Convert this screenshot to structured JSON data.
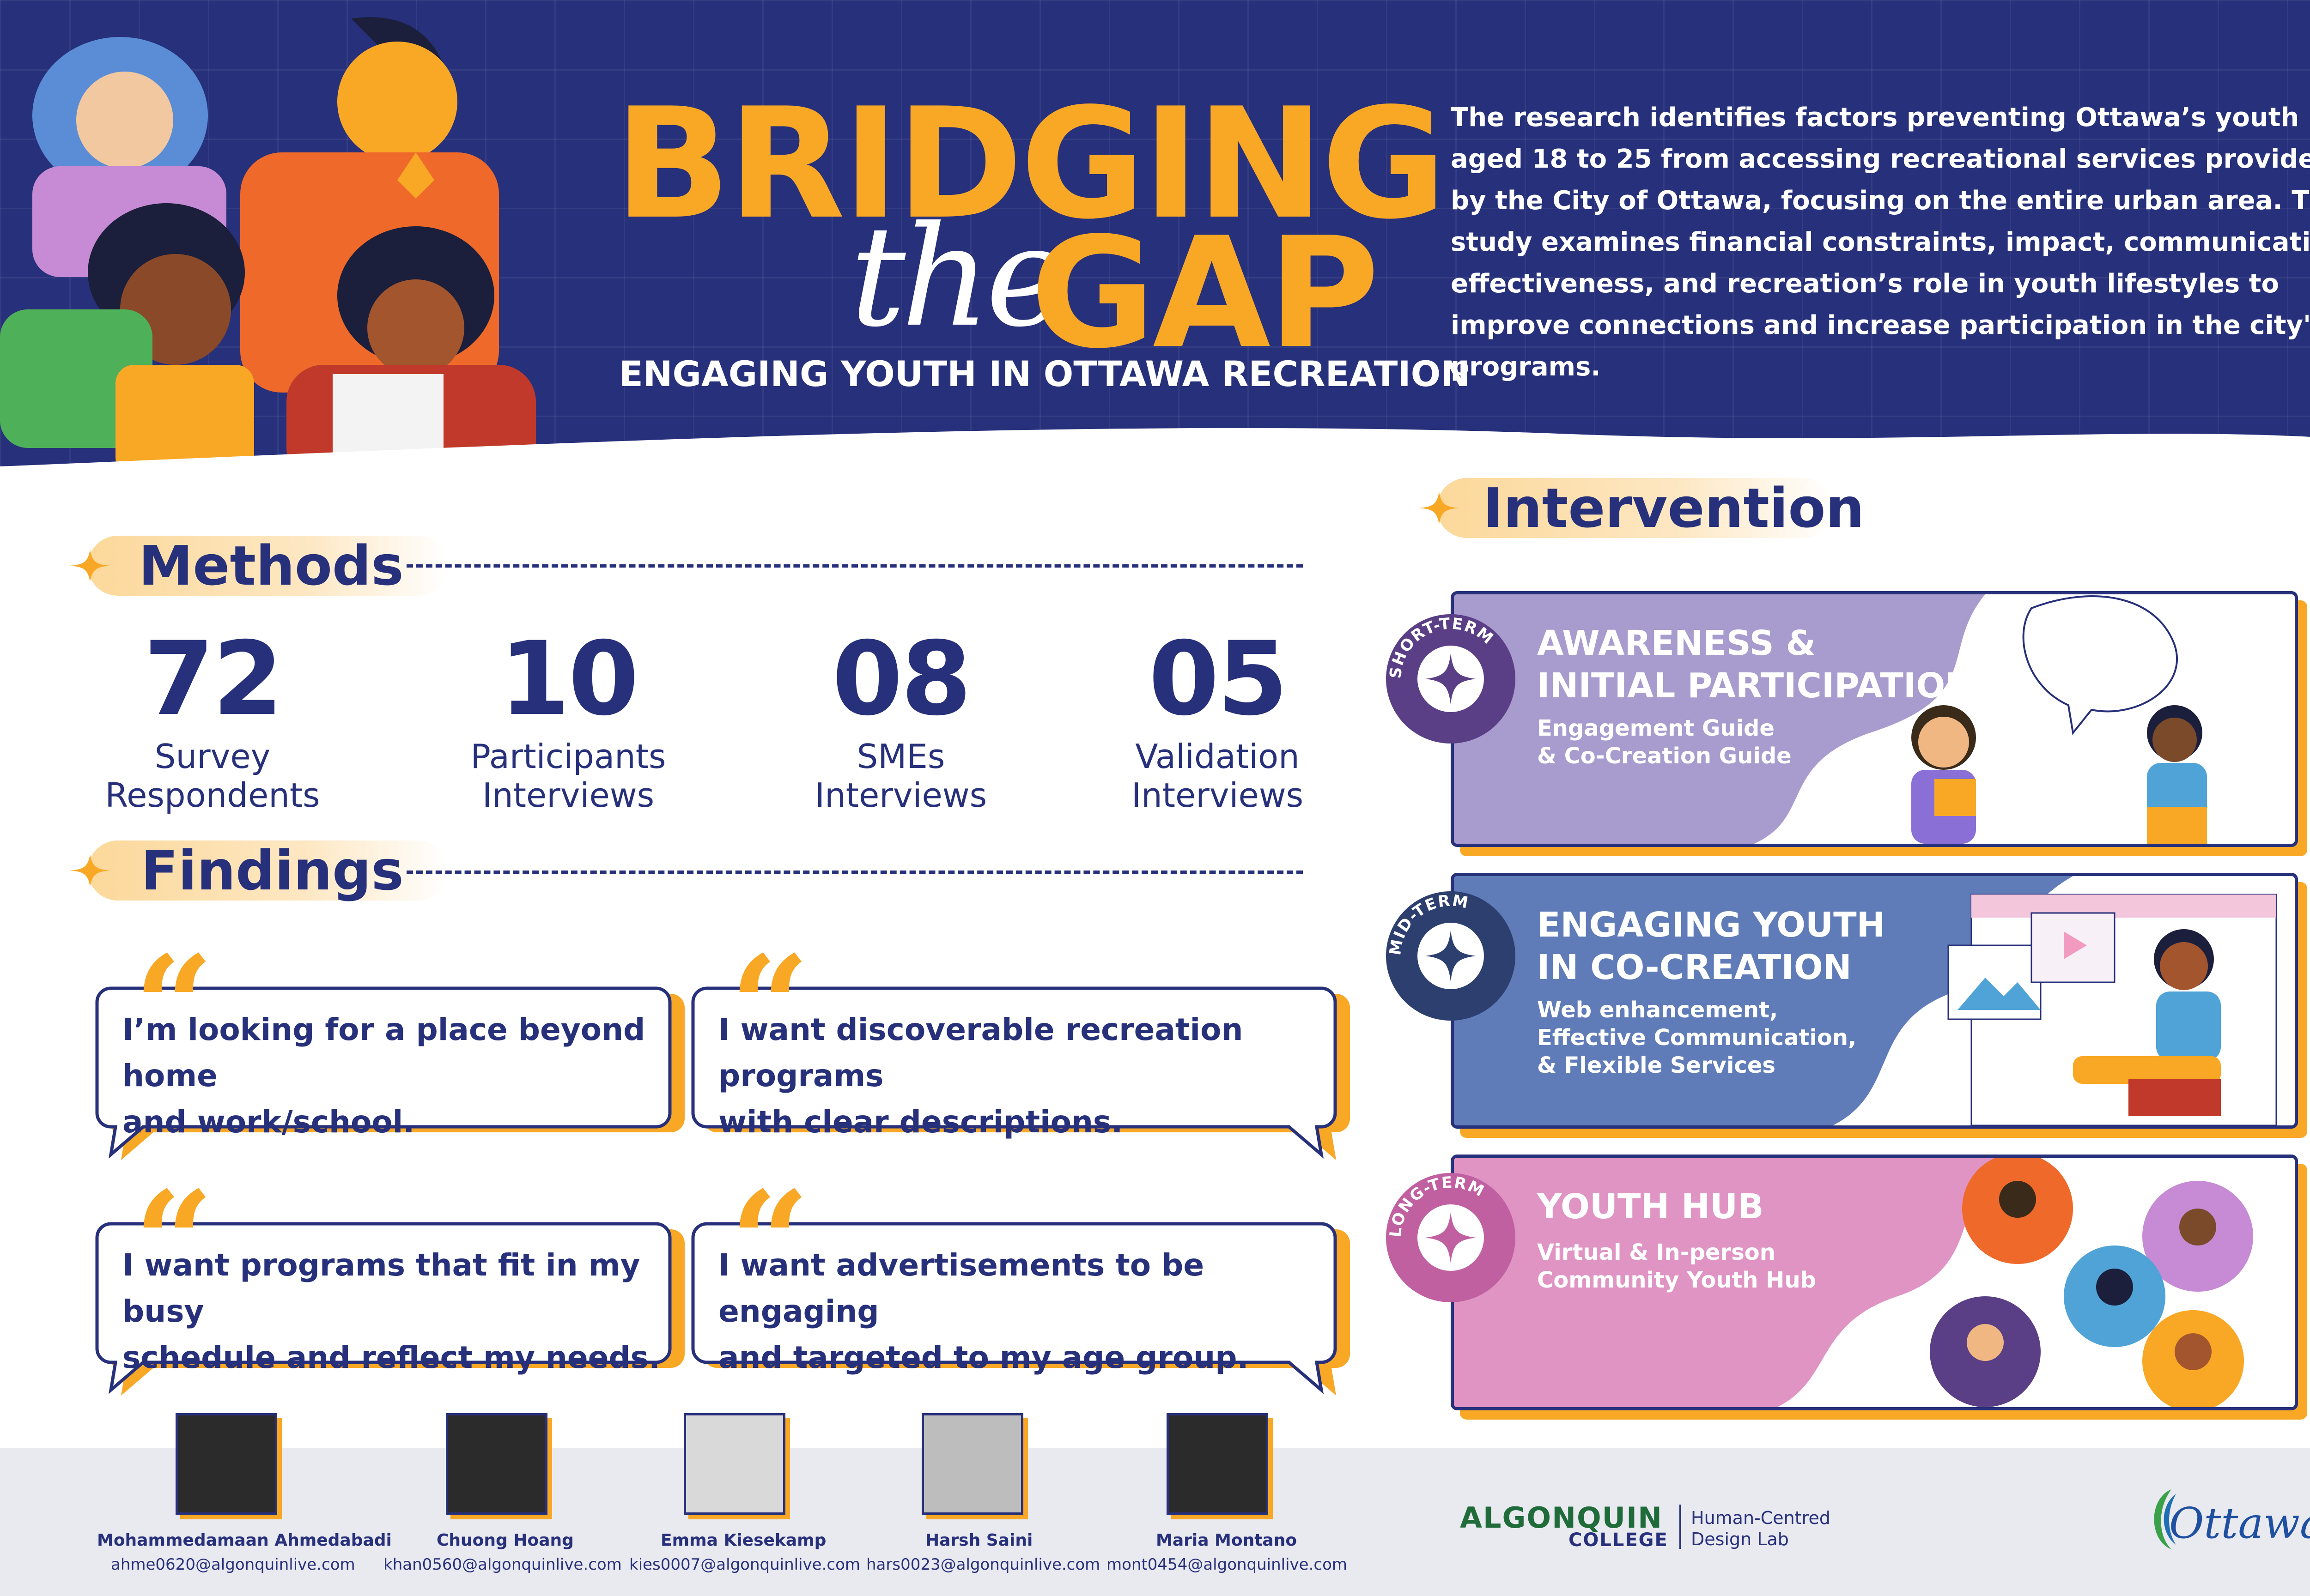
{
  "header": {
    "title_line1": "BRIDGING",
    "title_the": "the",
    "title_line2": "GAP",
    "subtitle": "ENGAGING YOUTH IN OTTAWA RECREATION",
    "intro": "The research identifies factors preventing Ottawa’s youth aged 18 to 25 from accessing recreational services provided by the City of Ottawa, focusing on the entire urban area. The study examines financial constraints, impact, communication effectiveness, and recreation’s role in youth lifestyles to improve connections and increase participation in the city's programs."
  },
  "methods": {
    "heading": "Methods",
    "stats": [
      {
        "value": "72",
        "label_line1": "Survey",
        "label_line2": "Respondents"
      },
      {
        "value": "10",
        "label_line1": "Participants",
        "label_line2": "Interviews"
      },
      {
        "value": "08",
        "label_line1": "SMEs",
        "label_line2": "Interviews"
      },
      {
        "value": "05",
        "label_line1": "Validation",
        "label_line2": "Interviews"
      }
    ]
  },
  "findings": {
    "heading": "Findings",
    "quotes": [
      {
        "line1": "I’m looking for a place beyond home",
        "line2": "and work/school."
      },
      {
        "line1": "I want discoverable recreation programs",
        "line2": "with clear descriptions."
      },
      {
        "line1": "I want programs that fit in my busy",
        "line2": "schedule and reflect my needs."
      },
      {
        "line1": "I want advertisements to be engaging",
        "line2": "and targeted to my age group."
      }
    ]
  },
  "intervention": {
    "heading": "Intervention",
    "cards": [
      {
        "badge": "SHORT-TERM",
        "title_line1": "AWARENESS &",
        "title_line2": "INITIAL PARTICIPATION",
        "desc": [
          "Engagement Guide",
          "& Co-Creation Guide"
        ],
        "color": "#a89bcd"
      },
      {
        "badge": "MID-TERM",
        "title_line1": "ENGAGING YOUTH",
        "title_line2": "IN CO-CREATION",
        "desc": [
          "Web enhancement,",
          "Effective Communication,",
          "& Flexible Services"
        ],
        "color": "#5f7cb8"
      },
      {
        "badge": "LONG-TERM",
        "title_line1": "YOUTH HUB",
        "title_line2": "",
        "desc": [
          "Virtual & In-person",
          "Community Youth Hub"
        ],
        "color": "#df94c4"
      }
    ]
  },
  "team": [
    {
      "name": "Mohammedamaan Ahmedabadi",
      "email": "ahme0620@algonquinlive.com"
    },
    {
      "name": "Chuong Hoang",
      "email": "khan0560@algonquinlive.com"
    },
    {
      "name": "Emma Kiesekamp",
      "email": "kies0007@algonquinlive.com"
    },
    {
      "name": "Harsh Saini",
      "email": "hars0023@algonquinlive.com"
    },
    {
      "name": "Maria Montano",
      "email": "mont0454@algonquinlive.com"
    }
  ],
  "logos": {
    "algonquin": "ALGONQUIN",
    "college": "COLLEGE",
    "lab_line1": "Human-Centred",
    "lab_line2": "Design Lab",
    "ottawa": "Ottawa"
  },
  "colors": {
    "navy": "#27307a",
    "orange": "#f9a825",
    "lavender": "#a89bcd",
    "blue": "#5f7cb8",
    "pink": "#df94c4"
  }
}
